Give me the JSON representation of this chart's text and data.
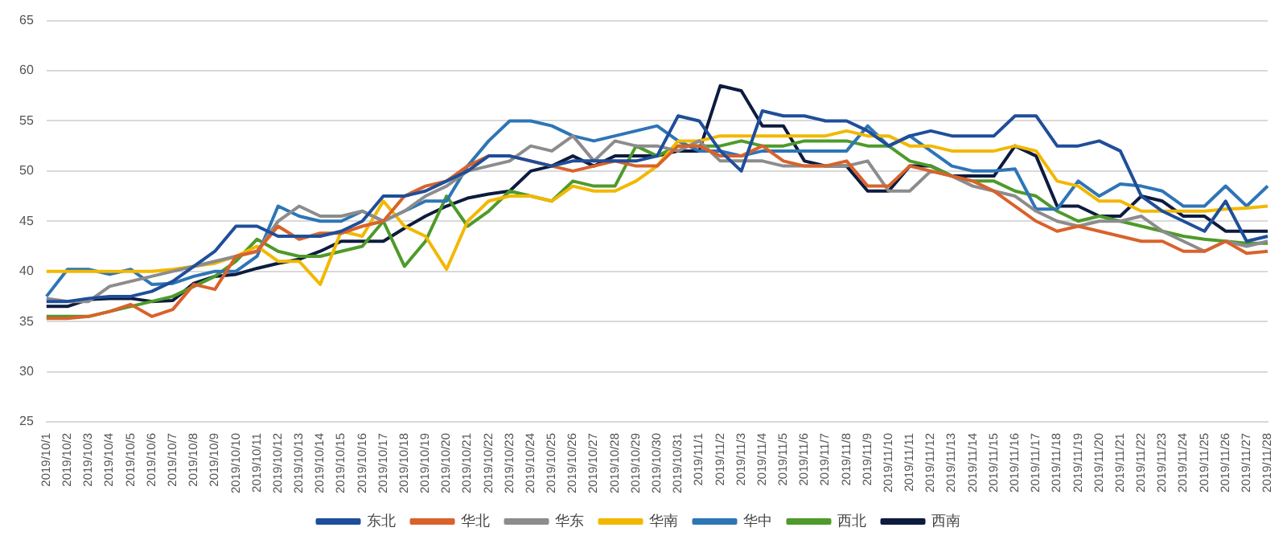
{
  "chart_data": {
    "type": "line",
    "categories": [
      "2019/10/1",
      "2019/10/2",
      "2019/10/3",
      "2019/10/4",
      "2019/10/5",
      "2019/10/6",
      "2019/10/7",
      "2019/10/8",
      "2019/10/9",
      "2019/10/10",
      "2019/10/11",
      "2019/10/12",
      "2019/10/13",
      "2019/10/14",
      "2019/10/15",
      "2019/10/16",
      "2019/10/17",
      "2019/10/18",
      "2019/10/19",
      "2019/10/20",
      "2019/10/21",
      "2019/10/22",
      "2019/10/23",
      "2019/10/24",
      "2019/10/25",
      "2019/10/26",
      "2019/10/27",
      "2019/10/28",
      "2019/10/29",
      "2019/10/30",
      "2019/10/31",
      "2019/11/1",
      "2019/11/2",
      "2019/11/3",
      "2019/11/4",
      "2019/11/5",
      "2019/11/6",
      "2019/11/7",
      "2019/11/8",
      "2019/11/9",
      "2019/11/10",
      "2019/11/11",
      "2019/11/12",
      "2019/11/13",
      "2019/11/14",
      "2019/11/15",
      "2019/11/16",
      "2019/11/17",
      "2019/11/18",
      "2019/11/19",
      "2019/11/20",
      "2019/11/21",
      "2019/11/22",
      "2019/11/23",
      "2019/11/24",
      "2019/11/25",
      "2019/11/26",
      "2019/11/27",
      "2019/11/28"
    ],
    "series": [
      {
        "name": "东北",
        "color": "#1f4e9a",
        "values": [
          37,
          37,
          37.3,
          37.5,
          37.5,
          38,
          39,
          40.5,
          42,
          44.5,
          44.5,
          43.5,
          43.5,
          43.5,
          44,
          45,
          47.5,
          47.5,
          48,
          49,
          50,
          51.5,
          51.5,
          51,
          50.5,
          51,
          51,
          51,
          51,
          51.5,
          55.5,
          55,
          52,
          50,
          56,
          55.5,
          55.5,
          55,
          55,
          54,
          52.5,
          53.5,
          54,
          53.5,
          53.5,
          53.5,
          55.5,
          55.5,
          52.5,
          52.5,
          53,
          52,
          47.5,
          46,
          45,
          44,
          47,
          43,
          43.5
        ]
      },
      {
        "name": "华北",
        "color": "#d9622b",
        "values": [
          35.3,
          35.3,
          35.5,
          36,
          36.7,
          35.5,
          36.2,
          38.7,
          38.2,
          41.5,
          42,
          44.5,
          43.2,
          43.8,
          43.8,
          44.5,
          45,
          47.5,
          48.5,
          49,
          50.5,
          51.5,
          51.5,
          51,
          50.5,
          50,
          50.5,
          51,
          50.5,
          50.5,
          52.5,
          52.5,
          51.5,
          51.5,
          52.5,
          51,
          50.5,
          50.5,
          51,
          48.5,
          48.5,
          50.5,
          50,
          49.5,
          49,
          48,
          46.5,
          45,
          44,
          44.5,
          44,
          43.5,
          43,
          43,
          42,
          42,
          43,
          41.8,
          42
        ]
      },
      {
        "name": "华东",
        "color": "#8c8c8c",
        "values": [
          37.3,
          37,
          37,
          38.5,
          39,
          39.5,
          40,
          40.5,
          41,
          41.5,
          42,
          45,
          46.5,
          45.5,
          45.5,
          46,
          45,
          46,
          47.5,
          48.5,
          50,
          50.5,
          51,
          52.5,
          52,
          53.5,
          51,
          53,
          52.5,
          52.5,
          52,
          53,
          51,
          51,
          51,
          50.5,
          50.5,
          50.5,
          50.5,
          51,
          48,
          48,
          50,
          49.5,
          48.5,
          48,
          47.5,
          46,
          45,
          44.5,
          45,
          45,
          45.5,
          44,
          43,
          42,
          43,
          42.5,
          43
        ]
      },
      {
        "name": "华南",
        "color": "#f2b800",
        "values": [
          40,
          40,
          40,
          40,
          40,
          40,
          40.2,
          40.5,
          40.8,
          41.5,
          42.5,
          41,
          41,
          38.7,
          44,
          43.5,
          47,
          44.5,
          43.5,
          40.2,
          45,
          47,
          47.5,
          47.5,
          47,
          48.5,
          48,
          48,
          49,
          50.5,
          53,
          53,
          53.5,
          53.5,
          53.5,
          53.5,
          53.5,
          53.5,
          54,
          53.5,
          53.5,
          52.5,
          52.5,
          52,
          52,
          52,
          52.5,
          52,
          49,
          48.5,
          47,
          47,
          46,
          46,
          46,
          46,
          46.2,
          46.3,
          46.5
        ]
      },
      {
        "name": "华中",
        "color": "#2e75b6",
        "values": [
          37.5,
          40.2,
          40.2,
          39.7,
          40.2,
          38.7,
          38.8,
          39.5,
          40,
          40,
          41.5,
          46.5,
          45.5,
          45,
          45,
          46,
          45,
          46,
          47,
          47,
          50.5,
          53,
          55,
          55,
          54.5,
          53.5,
          53,
          53.5,
          54,
          54.5,
          53,
          52,
          52,
          51.5,
          52,
          52,
          52,
          52,
          52,
          54.5,
          52.5,
          53.5,
          52,
          50.5,
          50,
          50,
          50.2,
          46.2,
          46.2,
          49,
          47.5,
          48.7,
          48.5,
          48,
          46.5,
          46.5,
          48.5,
          46.5,
          48.5
        ]
      },
      {
        "name": "西北",
        "color": "#4e9a2a",
        "values": [
          35.5,
          35.5,
          35.5,
          36,
          36.5,
          37,
          37.5,
          38.5,
          39.5,
          41,
          43.2,
          42,
          41.5,
          41.5,
          42,
          42.5,
          45,
          40.5,
          43,
          47.5,
          44.5,
          46,
          48,
          47.5,
          47,
          49,
          48.5,
          48.5,
          52.5,
          51.5,
          52.5,
          52.5,
          52.5,
          53,
          52.5,
          52.5,
          53,
          53,
          53,
          52.5,
          52.5,
          51,
          50.5,
          49.5,
          49,
          49,
          48,
          47.5,
          46,
          45,
          45.5,
          45,
          44.5,
          44,
          43.5,
          43.2,
          43,
          42.8,
          42.8
        ]
      },
      {
        "name": "西南",
        "color": "#0d1b3e",
        "values": [
          36.5,
          36.5,
          37.2,
          37.3,
          37.3,
          37,
          37.1,
          38.8,
          39.5,
          39.7,
          40.3,
          40.8,
          41.2,
          42,
          43,
          43,
          43,
          44.3,
          45.5,
          46.5,
          47.3,
          47.7,
          48,
          50,
          50.5,
          51.5,
          50.5,
          51.5,
          51.5,
          51.5,
          52,
          52,
          58.5,
          58,
          54.5,
          54.5,
          51,
          50.5,
          50.5,
          48,
          48,
          50.5,
          50.5,
          49.5,
          49.5,
          49.5,
          52.5,
          51.5,
          46.5,
          46.5,
          45.5,
          45.5,
          47.5,
          47,
          45.5,
          45.5,
          44,
          44,
          44
        ]
      }
    ],
    "ylim": [
      25,
      65
    ],
    "yticks": [
      25,
      30,
      35,
      40,
      45,
      50,
      55,
      60,
      65
    ],
    "grid": "y",
    "legend": "bottom",
    "marker": "none",
    "line_style": "solid"
  }
}
